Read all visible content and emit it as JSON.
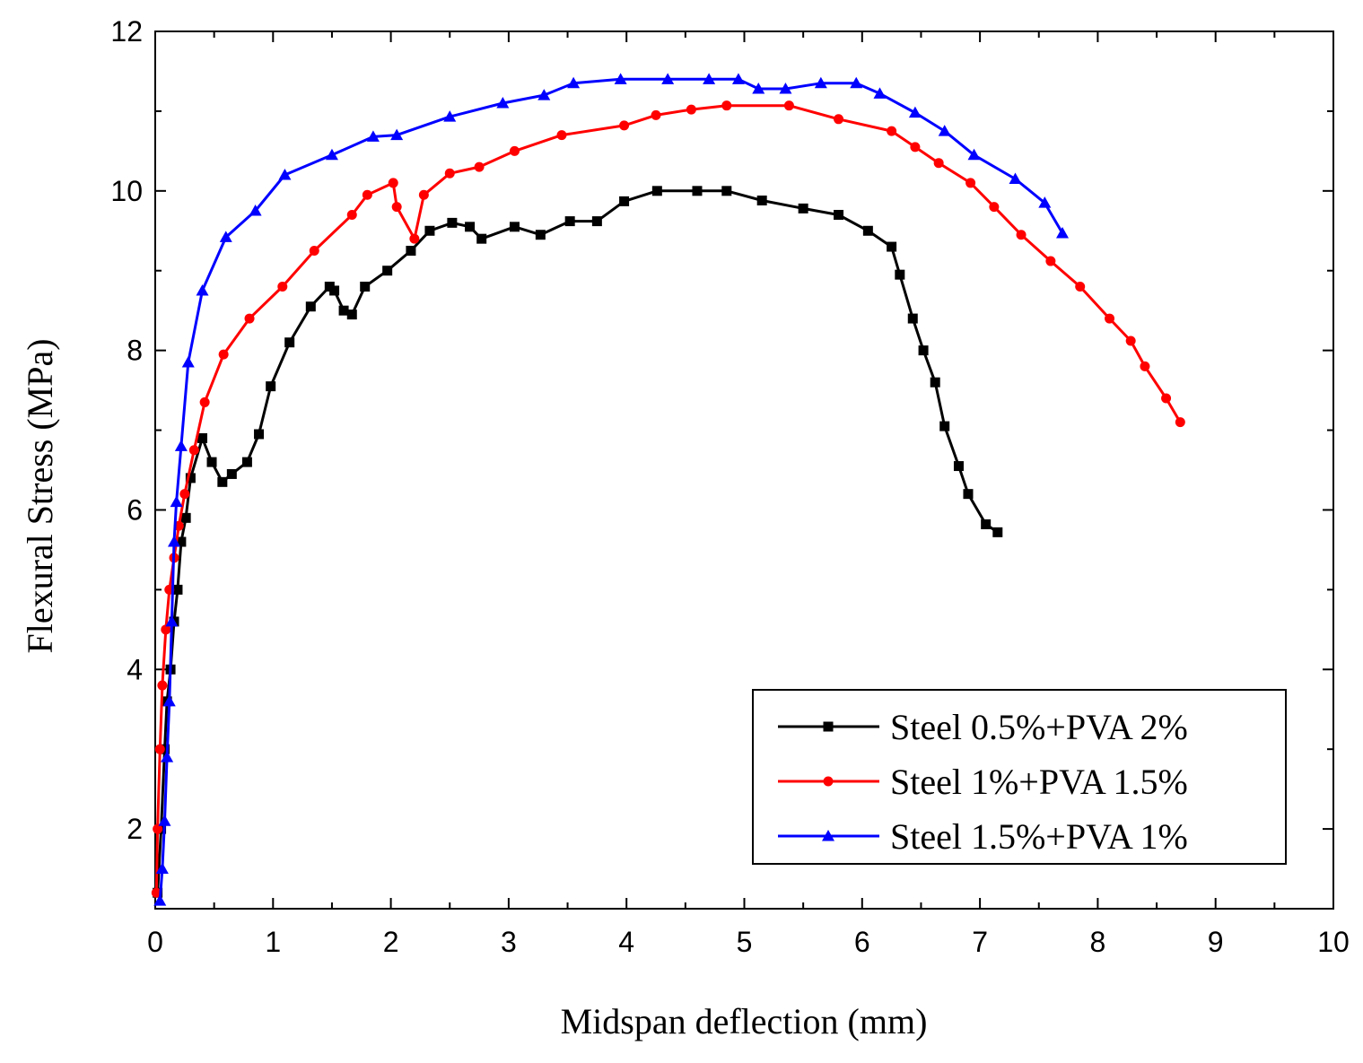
{
  "chart_data": {
    "type": "line",
    "title": "",
    "xlabel": "Midspan deflection (mm)",
    "ylabel": "Flexural Stress (MPa)",
    "xlim": [
      0,
      10
    ],
    "ylim": [
      1,
      12
    ],
    "xticks": [
      "0",
      "1",
      "2",
      "3",
      "4",
      "5",
      "6",
      "7",
      "8",
      "9",
      "10"
    ],
    "yticks": [
      "2",
      "4",
      "6",
      "8",
      "10",
      "12"
    ],
    "legend_position": "bottom-right",
    "series": [
      {
        "name": "Steel 0.5%+PVA 2%",
        "color": "#000000",
        "marker": "square",
        "x": [
          0.02,
          0.05,
          0.08,
          0.1,
          0.13,
          0.16,
          0.19,
          0.22,
          0.26,
          0.3,
          0.4,
          0.48,
          0.57,
          0.65,
          0.78,
          0.88,
          0.98,
          1.14,
          1.32,
          1.48,
          1.52,
          1.6,
          1.67,
          1.78,
          1.97,
          2.17,
          2.33,
          2.52,
          2.67,
          2.77,
          3.05,
          3.27,
          3.52,
          3.75,
          3.98,
          4.26,
          4.6,
          4.85,
          5.15,
          5.5,
          5.8,
          6.05,
          6.25,
          6.32,
          6.43,
          6.52,
          6.62,
          6.7,
          6.82,
          6.9,
          7.05,
          7.15
        ],
        "y": [
          1.2,
          2.0,
          3.0,
          3.6,
          4.0,
          4.6,
          5.0,
          5.6,
          5.9,
          6.4,
          6.9,
          6.6,
          6.35,
          6.45,
          6.6,
          6.95,
          7.55,
          8.1,
          8.55,
          8.8,
          8.75,
          8.5,
          8.45,
          8.8,
          9.0,
          9.25,
          9.5,
          9.6,
          9.55,
          9.4,
          9.55,
          9.45,
          9.62,
          9.62,
          9.87,
          10.0,
          10.0,
          10.0,
          9.88,
          9.78,
          9.7,
          9.5,
          9.3,
          8.95,
          8.4,
          8.0,
          7.6,
          7.05,
          6.55,
          6.2,
          5.82,
          5.72
        ]
      },
      {
        "name": "Steel 1%+PVA 1.5%",
        "color": "#ff0000",
        "marker": "circle",
        "x": [
          0.01,
          0.02,
          0.04,
          0.06,
          0.09,
          0.12,
          0.16,
          0.2,
          0.25,
          0.33,
          0.42,
          0.58,
          0.8,
          1.08,
          1.35,
          1.67,
          1.8,
          2.02,
          2.05,
          2.2,
          2.28,
          2.5,
          2.75,
          3.05,
          3.45,
          3.98,
          4.25,
          4.55,
          4.85,
          5.38,
          5.8,
          6.25,
          6.45,
          6.65,
          6.92,
          7.12,
          7.35,
          7.6,
          7.85,
          8.1,
          8.28,
          8.4,
          8.58,
          8.7
        ],
        "y": [
          1.2,
          2.0,
          3.0,
          3.8,
          4.5,
          5.0,
          5.4,
          5.8,
          6.2,
          6.75,
          7.35,
          7.95,
          8.4,
          8.8,
          9.25,
          9.7,
          9.95,
          10.1,
          9.8,
          9.4,
          9.95,
          10.22,
          10.3,
          10.5,
          10.7,
          10.82,
          10.95,
          11.02,
          11.07,
          11.07,
          10.9,
          10.75,
          10.55,
          10.35,
          10.1,
          9.8,
          9.45,
          9.12,
          8.8,
          8.4,
          8.12,
          7.8,
          7.4,
          7.1
        ]
      },
      {
        "name": "Steel 1.5%+PVA 1%",
        "color": "#0000ff",
        "marker": "triangle",
        "x": [
          0.04,
          0.06,
          0.08,
          0.1,
          0.12,
          0.14,
          0.16,
          0.18,
          0.22,
          0.28,
          0.4,
          0.6,
          0.85,
          1.1,
          1.5,
          1.85,
          2.05,
          2.5,
          2.95,
          3.3,
          3.55,
          3.95,
          4.35,
          4.7,
          4.95,
          5.12,
          5.35,
          5.65,
          5.95,
          6.15,
          6.45,
          6.7,
          6.95,
          7.3,
          7.55,
          7.7
        ],
        "y": [
          1.1,
          1.5,
          2.1,
          2.9,
          3.6,
          4.6,
          5.6,
          6.1,
          6.8,
          7.85,
          8.75,
          9.42,
          9.75,
          10.2,
          10.45,
          10.68,
          10.7,
          10.93,
          11.1,
          11.2,
          11.35,
          11.4,
          11.4,
          11.4,
          11.4,
          11.28,
          11.28,
          11.35,
          11.35,
          11.22,
          10.98,
          10.75,
          10.45,
          10.15,
          9.85,
          9.47
        ]
      }
    ]
  }
}
